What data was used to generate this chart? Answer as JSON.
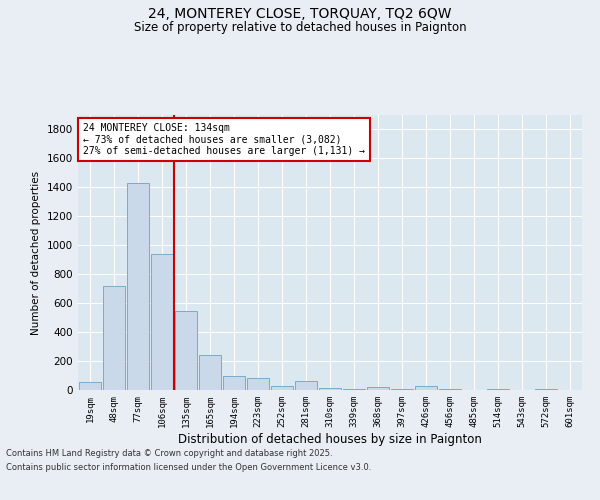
{
  "title1": "24, MONTEREY CLOSE, TORQUAY, TQ2 6QW",
  "title2": "Size of property relative to detached houses in Paignton",
  "xlabel": "Distribution of detached houses by size in Paignton",
  "ylabel": "Number of detached properties",
  "categories": [
    "19sqm",
    "48sqm",
    "77sqm",
    "106sqm",
    "135sqm",
    "165sqm",
    "194sqm",
    "223sqm",
    "252sqm",
    "281sqm",
    "310sqm",
    "339sqm",
    "368sqm",
    "397sqm",
    "426sqm",
    "456sqm",
    "485sqm",
    "514sqm",
    "543sqm",
    "572sqm",
    "601sqm"
  ],
  "values": [
    55,
    720,
    1430,
    940,
    545,
    245,
    100,
    85,
    25,
    60,
    15,
    5,
    20,
    5,
    30,
    5,
    0,
    5,
    0,
    5,
    0
  ],
  "bar_color": "#c9d9ea",
  "bar_edge_color": "#7baac9",
  "vline_x_index": 3.5,
  "vline_color": "#cc0000",
  "annotation_text": "24 MONTEREY CLOSE: 134sqm\n← 73% of detached houses are smaller (3,082)\n27% of semi-detached houses are larger (1,131) →",
  "annotation_box_color": "#ffffff",
  "annotation_box_edge": "#cc0000",
  "ylim": [
    0,
    1900
  ],
  "yticks": [
    0,
    200,
    400,
    600,
    800,
    1000,
    1200,
    1400,
    1600,
    1800
  ],
  "footer1": "Contains HM Land Registry data © Crown copyright and database right 2025.",
  "footer2": "Contains public sector information licensed under the Open Government Licence v3.0.",
  "bg_color": "#e8eef4",
  "plot_bg_color": "#dce8f0",
  "grid_color": "#ffffff"
}
